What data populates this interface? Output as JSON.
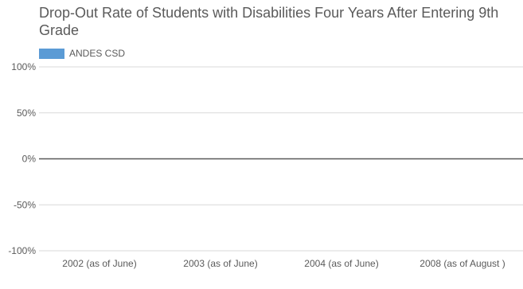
{
  "chart_data": {
    "type": "bar",
    "title": "Drop-Out Rate of Students with Disabilities Four Years After Entering 9th Grade",
    "categories": [
      "2002 (as of June)",
      "2003 (as of June)",
      "2004 (as of June)",
      "2008 (as of August )"
    ],
    "series": [
      {
        "name": "ANDES CSD",
        "color": "#5b9bd5",
        "values": [
          null,
          null,
          null,
          null
        ]
      }
    ],
    "yticks": [
      "100%",
      "50%",
      "0%",
      "-50%",
      "-100%"
    ],
    "ylim": [
      -1,
      1
    ],
    "grid": true,
    "legend_position": "top-left"
  }
}
